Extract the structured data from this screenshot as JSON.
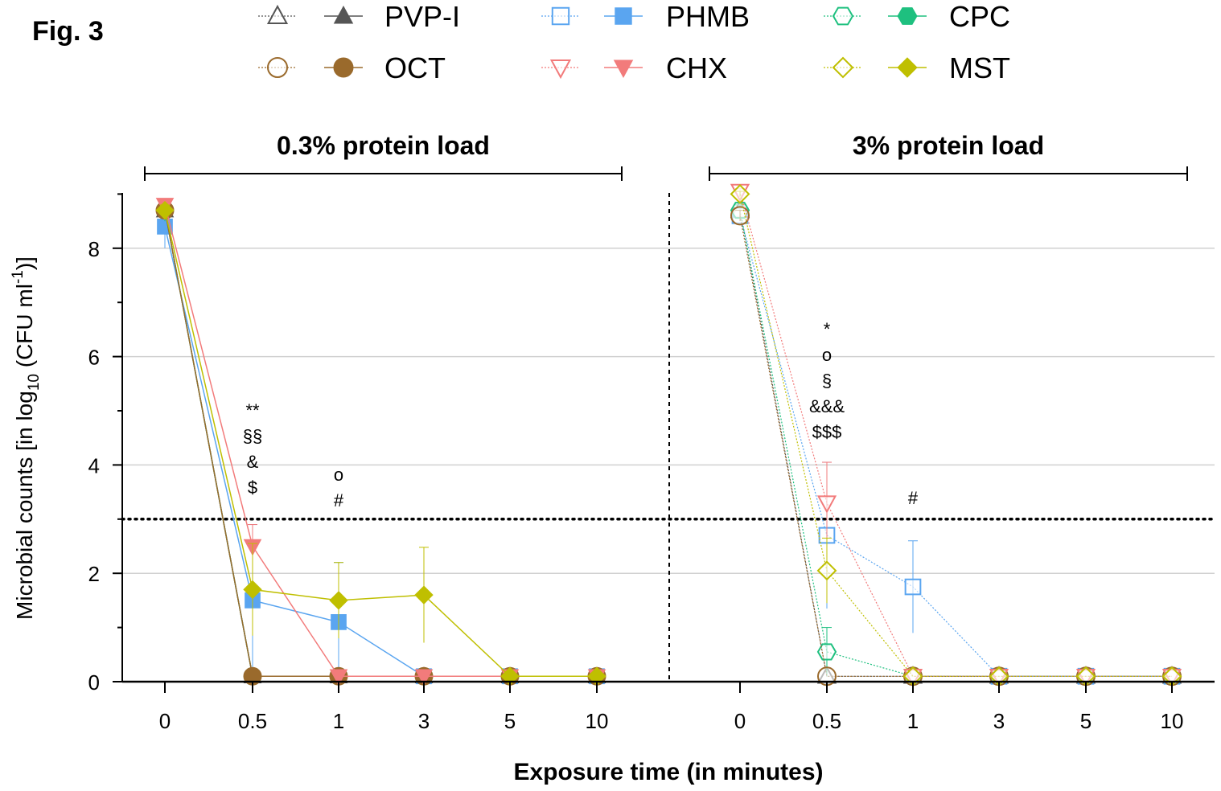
{
  "figure_label": "Fig. 3",
  "legend": [
    {
      "label": "PVP-I",
      "color": "#555555",
      "marker": "triangle-up"
    },
    {
      "label": "PHMB",
      "color": "#5aa5f0",
      "marker": "square"
    },
    {
      "label": "CPC",
      "color": "#1ec07f",
      "marker": "hexagon"
    },
    {
      "label": "OCT",
      "color": "#9a6a2c",
      "marker": "circle"
    },
    {
      "label": "CHX",
      "color": "#f27b7b",
      "marker": "triangle-down"
    },
    {
      "label": "MST",
      "color": "#bfbf00",
      "marker": "diamond"
    }
  ],
  "chart_data": {
    "type": "line",
    "xlabel": "Exposure time (in minutes)",
    "ylabel": "Microbial counts [in log10 (CFU ml-1)]",
    "ylim": [
      0,
      9
    ],
    "yticks": [
      0,
      2,
      4,
      6,
      8
    ],
    "categories": [
      "0",
      "0.5",
      "1",
      "3",
      "5",
      "10"
    ],
    "threshold": 3,
    "grid": "horizontal",
    "panels": [
      {
        "title": "0.3% protein load",
        "filled_markers": true,
        "series": [
          {
            "name": "PVP-I",
            "values": [
              8.7,
              0.1,
              0.1,
              0.1,
              0.1,
              0.1
            ],
            "err": [
              0.1,
              0,
              0,
              0,
              0,
              0
            ]
          },
          {
            "name": "PHMB",
            "values": [
              8.4,
              1.5,
              1.1,
              0.1,
              0.1,
              0.1
            ],
            "err": [
              0.4,
              1.4,
              1.1,
              0,
              0,
              0
            ]
          },
          {
            "name": "CPC",
            "values": [
              8.7,
              0.1,
              0.1,
              0.1,
              0.1,
              0.1
            ],
            "err": [
              0.2,
              0,
              0,
              0,
              0,
              0
            ]
          },
          {
            "name": "OCT",
            "values": [
              8.7,
              0.1,
              0.1,
              0.1,
              0.1,
              0.1
            ],
            "err": [
              0.15,
              0,
              0,
              0,
              0,
              0
            ]
          },
          {
            "name": "CHX",
            "values": [
              8.8,
              2.5,
              0.1,
              0.1,
              0.1,
              0.1
            ],
            "err": [
              0.1,
              0.4,
              0,
              0,
              0,
              0
            ]
          },
          {
            "name": "MST",
            "values": [
              8.7,
              1.7,
              1.5,
              1.6,
              0.1,
              0.1
            ],
            "err": [
              0.1,
              0.85,
              0.7,
              0.88,
              0,
              0
            ]
          }
        ],
        "annotations": [
          {
            "x": "0.5",
            "lines": [
              "**",
              "§§",
              "&",
              "$"
            ]
          },
          {
            "x": "1",
            "lines": [
              "o",
              "#"
            ]
          }
        ]
      },
      {
        "title": "3% protein load",
        "filled_markers": false,
        "series": [
          {
            "name": "PVP-I",
            "values": [
              8.7,
              0.1,
              0.1,
              0.1,
              0.1,
              0.1
            ],
            "err": [
              0.1,
              0,
              0,
              0,
              0,
              0
            ]
          },
          {
            "name": "PHMB",
            "values": [
              8.6,
              2.7,
              1.75,
              0.1,
              0.1,
              0.1
            ],
            "err": [
              0.1,
              1.35,
              0.85,
              0,
              0,
              0
            ]
          },
          {
            "name": "CPC",
            "values": [
              8.7,
              0.55,
              0.1,
              0.1,
              0.1,
              0.1
            ],
            "err": [
              0.1,
              0.45,
              0,
              0,
              0,
              0
            ]
          },
          {
            "name": "OCT",
            "values": [
              8.6,
              0.1,
              0.1,
              0.1,
              0.1,
              0.1
            ],
            "err": [
              0.1,
              0,
              0,
              0,
              0,
              0
            ]
          },
          {
            "name": "CHX",
            "values": [
              9.05,
              3.3,
              0.1,
              0.1,
              0.1,
              0.1
            ],
            "err": [
              0.05,
              0.75,
              0,
              0,
              0,
              0
            ]
          },
          {
            "name": "MST",
            "values": [
              9.0,
              2.05,
              0.1,
              0.1,
              0.1,
              0.1
            ],
            "err": [
              0.05,
              0.6,
              0,
              0,
              0,
              0
            ]
          }
        ],
        "annotations": [
          {
            "x": "0.5",
            "lines": [
              "*",
              "o",
              "§",
              "&&&",
              "$$$"
            ]
          },
          {
            "x": "1",
            "lines": [
              "#"
            ]
          }
        ]
      }
    ]
  }
}
